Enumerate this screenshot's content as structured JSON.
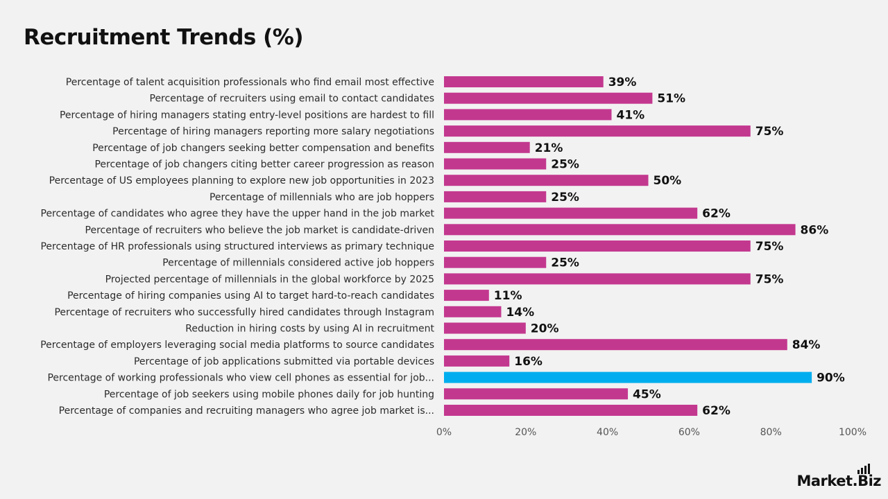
{
  "chart_data": {
    "type": "bar",
    "orientation": "horizontal",
    "title": "Recruitment Trends (%)",
    "xlim": [
      0,
      100
    ],
    "x_ticks": [
      "0%",
      "20%",
      "40%",
      "60%",
      "80%",
      "100%"
    ],
    "x_tick_values": [
      0,
      20,
      40,
      60,
      80,
      100
    ],
    "grid": false,
    "legend": "none",
    "bar_color": "#c3388f",
    "highlight_color": "#00aeef",
    "highlight_index": 18,
    "categories": [
      "Percentage of talent acquisition professionals who find email most effective",
      "Percentage of recruiters using email to contact candidates",
      "Percentage of hiring managers stating entry-level positions are hardest to fill",
      "Percentage of hiring managers reporting more salary negotiations",
      "Percentage of job changers seeking better compensation and benefits",
      "Percentage of job changers citing better career progression as reason",
      "Percentage of US employees planning to explore new job opportunities in 2023",
      "Percentage of millennials who are job hoppers",
      "Percentage of candidates who agree they have the upper hand in the job market",
      "Percentage of recruiters who believe the job market is candidate-driven",
      "Percentage of HR professionals using structured interviews as primary technique",
      "Percentage of millennials considered active job hoppers",
      "Projected percentage of millennials in the global workforce by 2025",
      "Percentage of hiring companies using AI to target hard-to-reach candidates",
      "Percentage of recruiters who successfully hired candidates through Instagram",
      "Reduction in hiring costs by using AI in recruitment",
      "Percentage of employers leveraging social media platforms to source candidates",
      "Percentage of job applications submitted via portable devices",
      "Percentage of working professionals who view cell phones as essential for job...",
      "Percentage of job seekers using mobile phones daily for job hunting",
      "Percentage of companies and recruiting managers who agree job market is..."
    ],
    "values": [
      39,
      51,
      41,
      75,
      21,
      25,
      50,
      25,
      62,
      86,
      75,
      25,
      75,
      11,
      14,
      20,
      84,
      16,
      90,
      45,
      62
    ],
    "value_labels": [
      "39%",
      "51%",
      "41%",
      "75%",
      "21%",
      "25%",
      "50%",
      "25%",
      "62%",
      "86%",
      "75%",
      "25%",
      "75%",
      "11%",
      "14%",
      "20%",
      "84%",
      "16%",
      "90%",
      "45%",
      "62%"
    ]
  },
  "brand": {
    "text": "Market.Biz",
    "icon": "signal-bars-icon"
  }
}
